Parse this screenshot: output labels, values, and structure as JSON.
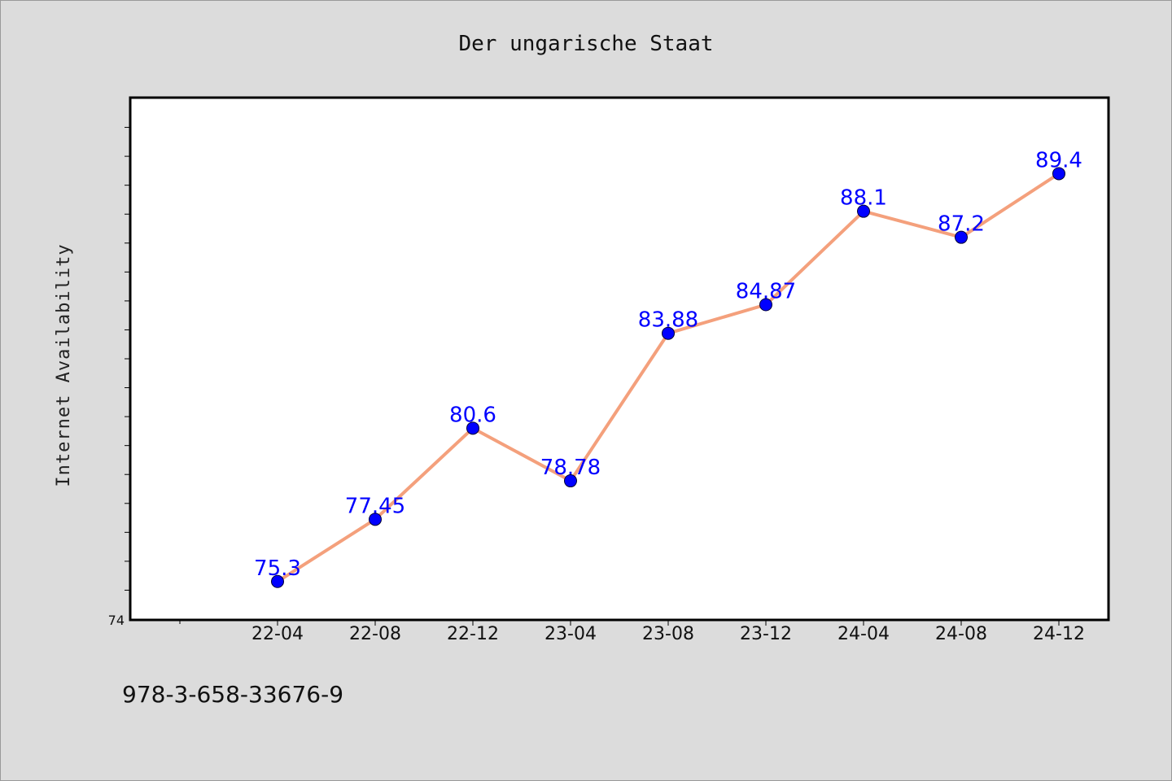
{
  "chart_data": {
    "type": "line",
    "title": "Der ungarische Staat",
    "xlabel": "",
    "ylabel": "Internet Availability",
    "categories": [
      "22-04",
      "22-08",
      "22-12",
      "23-04",
      "23-08",
      "23-12",
      "24-04",
      "24-08",
      "24-12"
    ],
    "series": [
      {
        "values": [
          75.3,
          77.45,
          80.6,
          78.78,
          83.88,
          84.87,
          88.1,
          87.2,
          89.4
        ],
        "labels": [
          "75.3",
          "77.45",
          "80.6",
          "78.78",
          "83.88",
          "84.87",
          "88.1",
          "87.2",
          "89.4"
        ],
        "line_color": "#f4a07c",
        "marker_color": "#0000ff"
      }
    ],
    "ylim": [
      74,
      92
    ],
    "y_tick_labels": [
      "74"
    ],
    "grid": false,
    "legend": "none"
  },
  "footer": {
    "isbn": "978-3-658-33676-9"
  },
  "colors": {
    "background": "#dcdcdc",
    "plot_area": "#ffffff",
    "line": "#f4a07c",
    "marker": "#0000ff",
    "data_label": "#0000ff"
  }
}
